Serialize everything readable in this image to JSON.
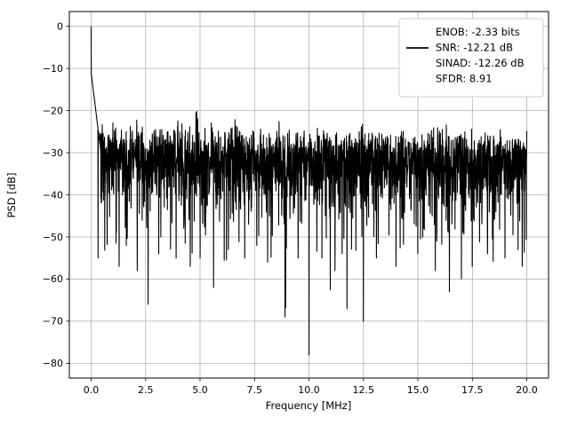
{
  "figure": {
    "background": "#ffffff",
    "axis_color": "#000000",
    "grid_color": "#b0b0b0"
  },
  "chart_data": {
    "type": "line",
    "title": "",
    "xlabel": "Frequency [MHz]",
    "ylabel": "PSD [dB]",
    "xlim": [
      -1,
      21
    ],
    "ylim": [
      -83.5,
      3.5
    ],
    "xticks": [
      0.0,
      2.5,
      5.0,
      7.5,
      10.0,
      12.5,
      15.0,
      17.5,
      20.0
    ],
    "xtick_labels": [
      "0.0",
      "2.5",
      "5.0",
      "7.5",
      "10.0",
      "12.5",
      "15.0",
      "17.5",
      "20.0"
    ],
    "yticks": [
      0,
      -10,
      -20,
      -30,
      -40,
      -50,
      -60,
      -70,
      -80
    ],
    "ytick_labels": [
      "0",
      "−10",
      "−20",
      "−30",
      "−40",
      "−50",
      "−60",
      "−70",
      "−80"
    ],
    "grid": true,
    "legend": {
      "position": "upper right",
      "sample_color": "#000000",
      "lines": [
        "ENOB: -2.33 bits",
        "SNR: -12.21 dB",
        "SINAD: -12.26 dB",
        "SFDR: 8.91"
      ]
    },
    "metrics": {
      "enob_bits": -2.33,
      "snr_db": -12.21,
      "sinad_db": -12.26,
      "sfdr": 8.91
    },
    "series": [
      {
        "name": "PSD",
        "color": "#000000",
        "x_range_mhz": [
          0,
          20
        ],
        "n_points": 2400,
        "seed": 42,
        "signal_peak": {
          "x_mhz": 0.0,
          "y_db": 0
        },
        "noise_floor": {
          "top_envelope_db_start": -21,
          "top_envelope_db_end": -24,
          "median_db": -32,
          "dense_band_bottom_db": -45
        },
        "dc_skirt": {
          "x_extent_mhz": 0.45,
          "start_db": -11
        },
        "notable_dips": [
          {
            "x_mhz": 0.32,
            "y_db": -55
          },
          {
            "x_mhz": 1.28,
            "y_db": -57
          },
          {
            "x_mhz": 1.62,
            "y_db": -52
          },
          {
            "x_mhz": 2.12,
            "y_db": -58
          },
          {
            "x_mhz": 2.62,
            "y_db": -66
          },
          {
            "x_mhz": 3.1,
            "y_db": -54
          },
          {
            "x_mhz": 3.9,
            "y_db": -55
          },
          {
            "x_mhz": 4.55,
            "y_db": -57
          },
          {
            "x_mhz": 5.0,
            "y_db": -55
          },
          {
            "x_mhz": 5.62,
            "y_db": -62
          },
          {
            "x_mhz": 6.3,
            "y_db": -53
          },
          {
            "x_mhz": 7.05,
            "y_db": -55
          },
          {
            "x_mhz": 7.6,
            "y_db": -52
          },
          {
            "x_mhz": 8.1,
            "y_db": -56
          },
          {
            "x_mhz": 8.9,
            "y_db": -69
          },
          {
            "x_mhz": 9.5,
            "y_db": -55
          },
          {
            "x_mhz": 10.0,
            "y_db": -78
          },
          {
            "x_mhz": 10.6,
            "y_db": -55
          },
          {
            "x_mhz": 11.2,
            "y_db": -58
          },
          {
            "x_mhz": 11.75,
            "y_db": -67
          },
          {
            "x_mhz": 12.5,
            "y_db": -70
          },
          {
            "x_mhz": 13.1,
            "y_db": -55
          },
          {
            "x_mhz": 14.0,
            "y_db": -57
          },
          {
            "x_mhz": 15.0,
            "y_db": -54
          },
          {
            "x_mhz": 15.8,
            "y_db": -58
          },
          {
            "x_mhz": 16.45,
            "y_db": -63
          },
          {
            "x_mhz": 17.0,
            "y_db": -60
          },
          {
            "x_mhz": 17.5,
            "y_db": -57
          },
          {
            "x_mhz": 18.2,
            "y_db": -54
          },
          {
            "x_mhz": 19.0,
            "y_db": -55
          },
          {
            "x_mhz": 19.6,
            "y_db": -53
          }
        ]
      }
    ]
  }
}
